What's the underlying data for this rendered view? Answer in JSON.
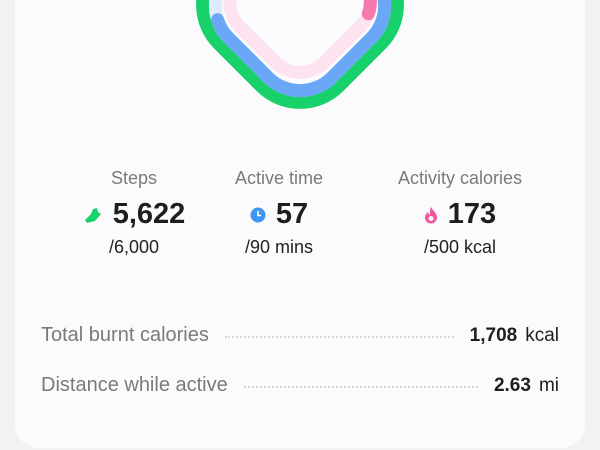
{
  "colors": {
    "steps": "#19d16a",
    "active_time": "#6aa8f7",
    "active_time_track": "#dcecfd",
    "calories": "#f579ad",
    "calories_track": "#fce3ef"
  },
  "progress": {
    "steps": 0.937,
    "active_time": 0.633,
    "calories": 0.346
  },
  "stats": [
    {
      "label": "Steps",
      "value": "5,622",
      "goal": "/6,000",
      "icon": "shoe-icon"
    },
    {
      "label": "Active time",
      "value": "57",
      "goal": "/90 mins",
      "icon": "clock-icon"
    },
    {
      "label": "Activity calories",
      "value": "173",
      "goal": "/500 kcal",
      "icon": "flame-icon"
    }
  ],
  "summary": [
    {
      "label": "Total burnt calories",
      "value": "1,708",
      "unit": "kcal"
    },
    {
      "label": "Distance while active",
      "value": "2.63",
      "unit": "mi"
    }
  ]
}
